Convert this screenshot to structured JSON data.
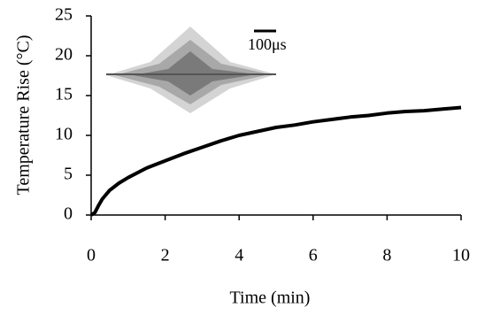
{
  "chart_data": {
    "type": "line",
    "x": [
      0,
      0.1,
      0.2,
      0.3,
      0.5,
      0.75,
      1,
      1.5,
      2,
      2.5,
      3,
      3.5,
      4,
      4.5,
      5,
      5.5,
      6,
      6.5,
      7,
      7.5,
      8,
      8.5,
      9,
      9.5,
      10
    ],
    "values": [
      0,
      0.3,
      1.2,
      2.0,
      3.1,
      4.0,
      4.7,
      5.9,
      6.8,
      7.7,
      8.5,
      9.3,
      10.0,
      10.5,
      11.0,
      11.3,
      11.7,
      12.0,
      12.3,
      12.5,
      12.8,
      13.0,
      13.1,
      13.3,
      13.5
    ],
    "color": "#000000",
    "xlabel": "Time (min)",
    "ylabel": "Temperature Rise (°C)",
    "xlim": [
      0,
      10
    ],
    "xticks": [
      0,
      2,
      4,
      6,
      8,
      10
    ],
    "ylim": [
      0,
      25
    ],
    "yticks": [
      0,
      5,
      10,
      15,
      20,
      25
    ],
    "inset_scale_label": "100μs"
  }
}
